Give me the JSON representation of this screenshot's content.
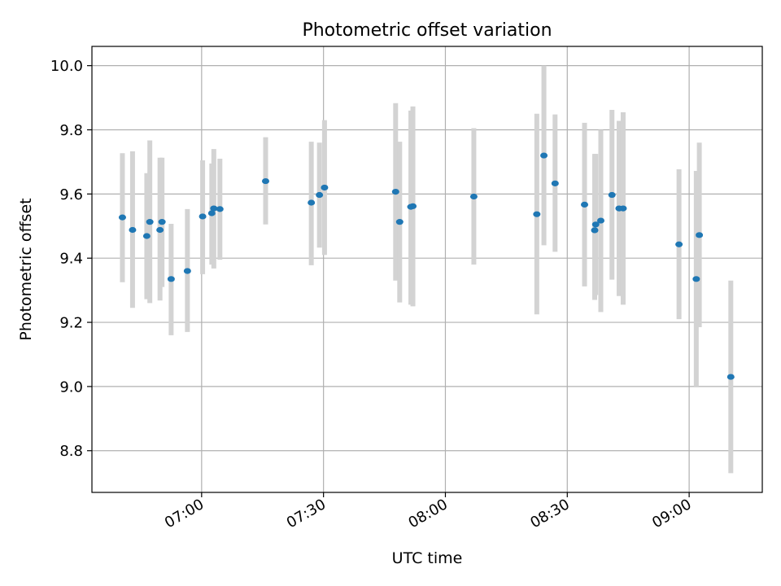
{
  "chart_data": {
    "type": "scatter",
    "title": "Photometric offset variation",
    "xlabel": "UTC time",
    "ylabel": "Photometric offset",
    "x_ticks": [
      "07:00",
      "07:30",
      "08:00",
      "08:30",
      "09:00"
    ],
    "y_ticks": [
      "8.8",
      "9.0",
      "9.2",
      "9.4",
      "9.6",
      "9.8",
      "10.0"
    ],
    "xlim": [
      "06:33",
      "09:18"
    ],
    "ylim": [
      8.67,
      10.06
    ],
    "grid": true,
    "colors": {
      "points": "#1f77b4",
      "error_bars": "#d3d3d3",
      "grid": "#b0b0b0"
    },
    "points": [
      {
        "x": "06:40:30",
        "y": 9.527,
        "ylo": 9.325,
        "yhi": 9.727
      },
      {
        "x": "06:43:00",
        "y": 9.488,
        "ylo": 9.245,
        "yhi": 9.733
      },
      {
        "x": "06:46:30",
        "y": 9.469,
        "ylo": 9.272,
        "yhi": 9.665
      },
      {
        "x": "06:47:15",
        "y": 9.513,
        "ylo": 9.26,
        "yhi": 9.767
      },
      {
        "x": "06:49:45",
        "y": 9.488,
        "ylo": 9.268,
        "yhi": 9.713
      },
      {
        "x": "06:50:15",
        "y": 9.513,
        "ylo": 9.31,
        "yhi": 9.713
      },
      {
        "x": "06:52:30",
        "y": 9.335,
        "ylo": 9.16,
        "yhi": 9.507
      },
      {
        "x": "06:56:30",
        "y": 9.36,
        "ylo": 9.17,
        "yhi": 9.553
      },
      {
        "x": "07:00:15",
        "y": 9.53,
        "ylo": 9.35,
        "yhi": 9.705
      },
      {
        "x": "07:02:30",
        "y": 9.54,
        "ylo": 9.38,
        "yhi": 9.695
      },
      {
        "x": "07:03:00",
        "y": 9.555,
        "ylo": 9.368,
        "yhi": 9.74
      },
      {
        "x": "07:04:30",
        "y": 9.553,
        "ylo": 9.395,
        "yhi": 9.71
      },
      {
        "x": "07:15:45",
        "y": 9.64,
        "ylo": 9.505,
        "yhi": 9.777
      },
      {
        "x": "07:27:00",
        "y": 9.573,
        "ylo": 9.378,
        "yhi": 9.763
      },
      {
        "x": "07:29:00",
        "y": 9.597,
        "ylo": 9.433,
        "yhi": 9.76
      },
      {
        "x": "07:30:15",
        "y": 9.62,
        "ylo": 9.41,
        "yhi": 9.83
      },
      {
        "x": "07:47:45",
        "y": 9.607,
        "ylo": 9.33,
        "yhi": 9.883
      },
      {
        "x": "07:48:45",
        "y": 9.513,
        "ylo": 9.262,
        "yhi": 9.763
      },
      {
        "x": "07:51:30",
        "y": 9.56,
        "ylo": 9.255,
        "yhi": 9.86
      },
      {
        "x": "07:52:00",
        "y": 9.562,
        "ylo": 9.25,
        "yhi": 9.873
      },
      {
        "x": "08:07:00",
        "y": 9.592,
        "ylo": 9.38,
        "yhi": 9.805
      },
      {
        "x": "08:22:30",
        "y": 9.537,
        "ylo": 9.225,
        "yhi": 9.85
      },
      {
        "x": "08:24:15",
        "y": 9.72,
        "ylo": 9.44,
        "yhi": 10.0
      },
      {
        "x": "08:27:00",
        "y": 9.633,
        "ylo": 9.42,
        "yhi": 9.848
      },
      {
        "x": "08:34:15",
        "y": 9.567,
        "ylo": 9.312,
        "yhi": 9.822
      },
      {
        "x": "08:36:45",
        "y": 9.487,
        "ylo": 9.27,
        "yhi": 9.725
      },
      {
        "x": "08:37:00",
        "y": 9.505,
        "ylo": 9.285,
        "yhi": 9.725
      },
      {
        "x": "08:38:15",
        "y": 9.517,
        "ylo": 9.232,
        "yhi": 9.8
      },
      {
        "x": "08:41:00",
        "y": 9.597,
        "ylo": 9.333,
        "yhi": 9.862
      },
      {
        "x": "08:42:45",
        "y": 9.555,
        "ylo": 9.282,
        "yhi": 9.828
      },
      {
        "x": "08:43:45",
        "y": 9.555,
        "ylo": 9.255,
        "yhi": 9.855
      },
      {
        "x": "08:57:30",
        "y": 9.443,
        "ylo": 9.21,
        "yhi": 9.677
      },
      {
        "x": "09:01:45",
        "y": 9.335,
        "ylo": 9.0,
        "yhi": 9.672
      },
      {
        "x": "09:02:30",
        "y": 9.472,
        "ylo": 9.185,
        "yhi": 9.76
      },
      {
        "x": "09:10:15",
        "y": 9.03,
        "ylo": 8.73,
        "yhi": 9.33
      }
    ]
  }
}
